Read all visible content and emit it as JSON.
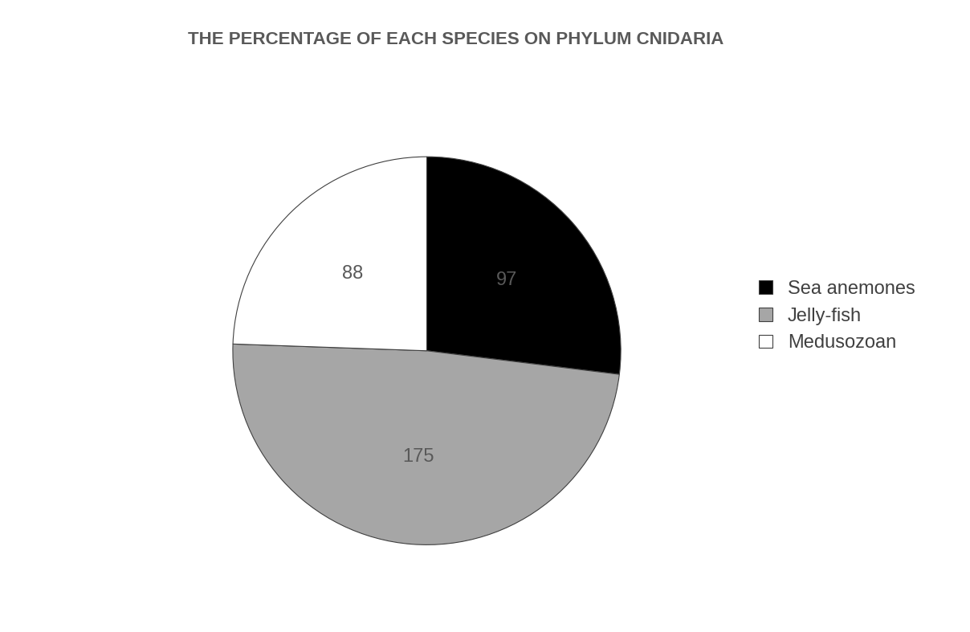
{
  "chart_data": {
    "type": "pie",
    "title": "THE PERCENTAGE OF EACH SPECIES ON PHYLUM CNIDARIA",
    "categories": [
      "Sea anemones",
      "Jelly-fish",
      "Medusozoan"
    ],
    "values": [
      97,
      175,
      88
    ],
    "colors": [
      "#000000",
      "#a6a6a6",
      "#ffffff"
    ],
    "data_labels": true,
    "legend": "right"
  }
}
